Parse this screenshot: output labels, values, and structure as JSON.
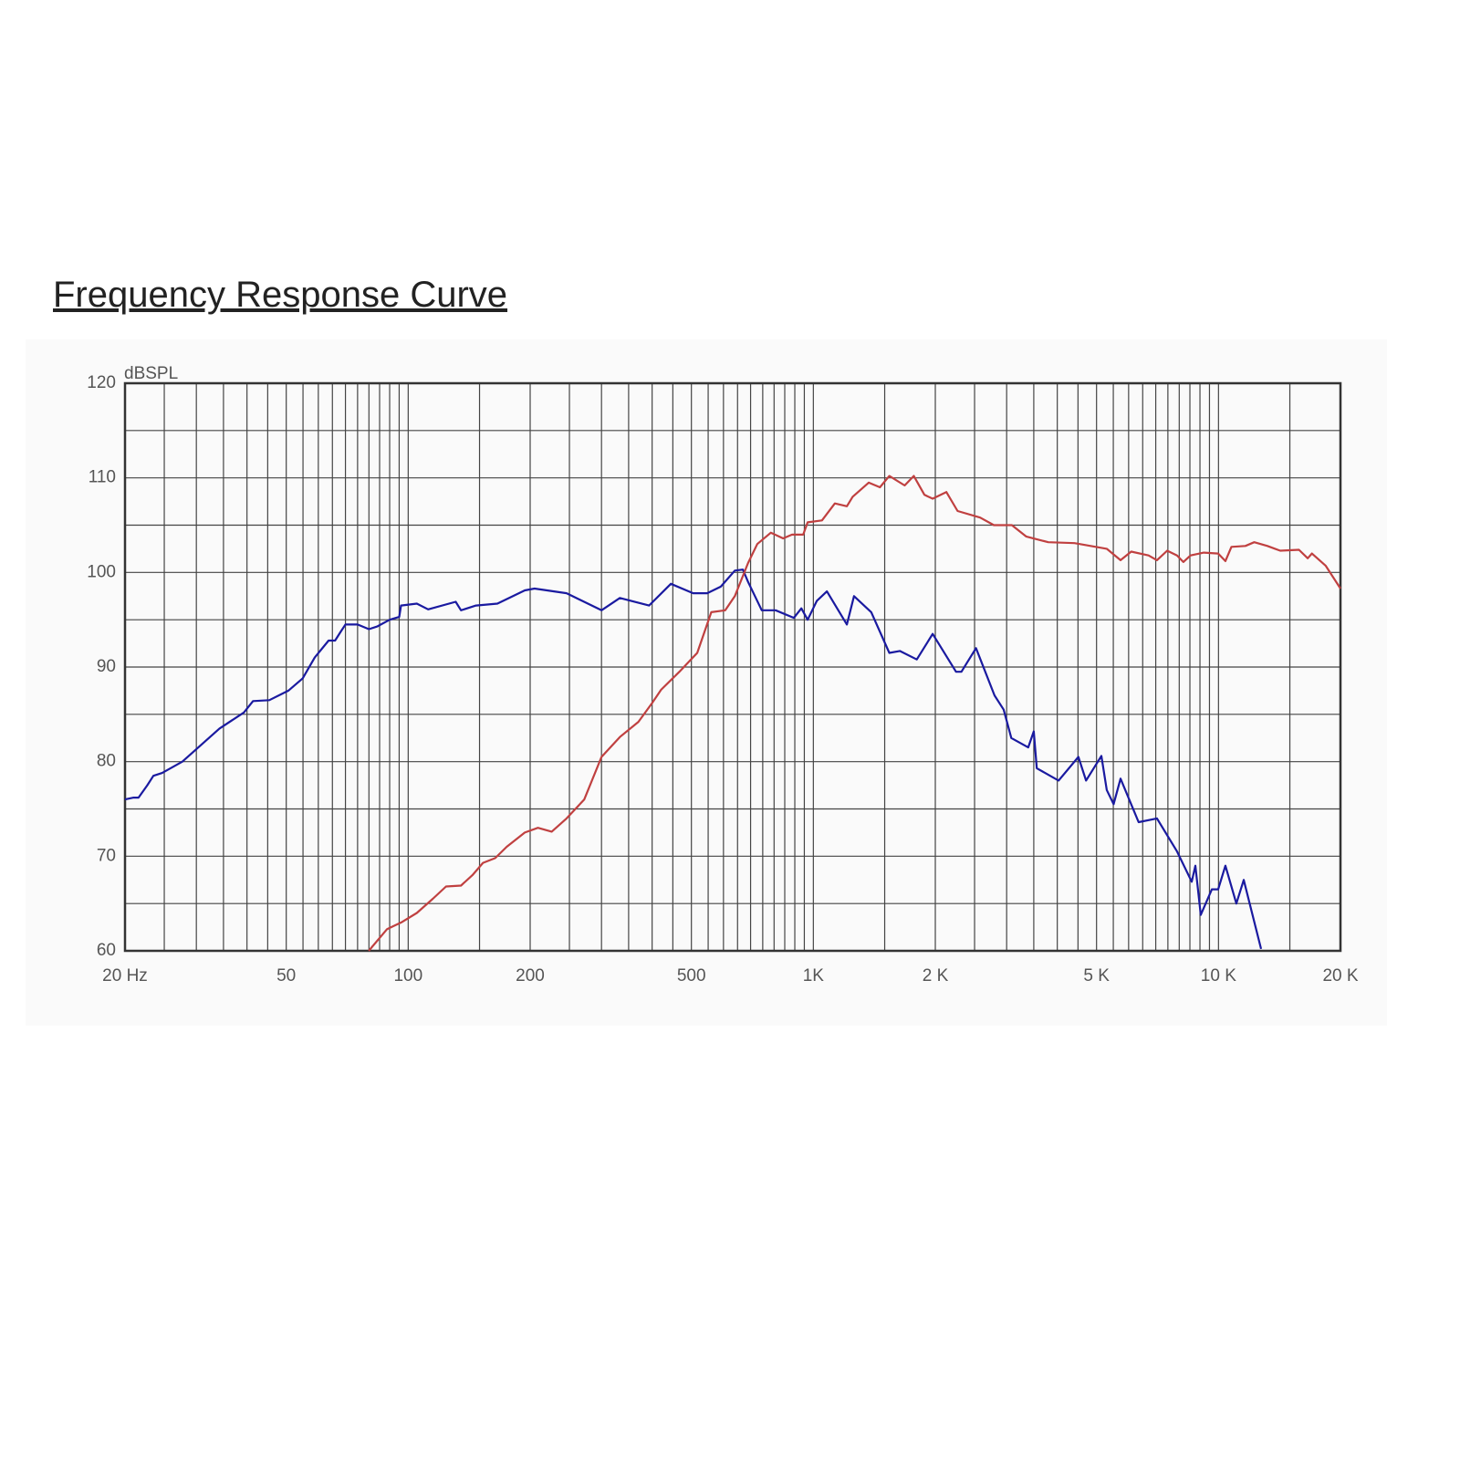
{
  "chart_data": {
    "type": "line",
    "title": "Frequency Response Curve",
    "y_label": "dBSPL",
    "x_scale": "log",
    "xlim": [
      20,
      20000
    ],
    "ylim": [
      60,
      120
    ],
    "xticks": [
      {
        "value": 20,
        "label": "20 Hz"
      },
      50,
      100,
      200,
      500,
      {
        "value": 1000,
        "label": "1K"
      },
      {
        "value": 2000,
        "label": "2 K"
      },
      {
        "value": 5000,
        "label": "5 K"
      },
      {
        "value": 10000,
        "label": "10 K"
      },
      {
        "value": 20000,
        "label": "20 K"
      }
    ],
    "yticks": [
      60,
      70,
      80,
      90,
      100,
      110,
      120
    ],
    "grid": true,
    "xgrid": [
      25,
      30,
      35,
      40,
      45,
      50,
      55,
      60,
      65,
      70,
      75,
      80,
      85,
      90,
      95,
      100,
      150,
      200,
      250,
      300,
      350,
      400,
      450,
      500,
      550,
      600,
      650,
      700,
      750,
      800,
      850,
      900,
      950,
      1000,
      1500,
      2000,
      2500,
      3000,
      3500,
      4000,
      4500,
      5000,
      5500,
      6000,
      6500,
      7000,
      7500,
      8000,
      8500,
      9000,
      9500,
      10000,
      15000
    ],
    "ygrid": [
      65,
      70,
      75,
      80,
      85,
      90,
      95,
      100,
      105,
      110,
      115
    ],
    "series": [
      {
        "color": "#1a1aa0",
        "x": [
          20,
          21,
          21.6,
          22.7,
          23.5,
          24.7,
          27.7,
          34.2,
          39.3,
          41.4,
          45.4,
          50.6,
          54.9,
          58.8,
          63.6,
          66,
          68.3,
          70,
          75,
          80,
          84,
          90,
          95,
          96,
          105,
          112,
          131,
          135,
          147,
          166,
          194,
          205,
          246,
          300,
          333,
          393,
          445,
          505,
          547,
          591,
          640,
          670,
          690,
          746,
          807,
          895,
          934,
          968,
          1020,
          1080,
          1210,
          1260,
          1390,
          1540,
          1635,
          1800,
          1970,
          2250,
          2320,
          2520,
          2800,
          2950,
          3080,
          3390,
          3500,
          3560,
          4030,
          4510,
          4710,
          5140,
          5300,
          5510,
          5730,
          6350,
          7050,
          7900,
          8590,
          8770,
          9040,
          9630,
          9980,
          10400,
          11070,
          11540,
          12740
        ],
        "values": [
          76,
          76.2,
          76.2,
          77.5,
          78.5,
          78.8,
          80,
          83.5,
          85.2,
          86.4,
          86.5,
          87.5,
          88.8,
          91,
          92.8,
          92.8,
          93.8,
          94.5,
          94.5,
          94,
          94.3,
          95,
          95.3,
          96.5,
          96.7,
          96.1,
          96.9,
          96,
          96.5,
          96.7,
          98.1,
          98.3,
          97.8,
          96,
          97.3,
          96.5,
          98.8,
          97.8,
          97.8,
          98.5,
          100.2,
          100.3,
          99,
          96,
          96,
          95.2,
          96.2,
          95,
          97,
          98,
          94.5,
          97.5,
          95.8,
          91.5,
          91.7,
          90.8,
          93.5,
          89.5,
          89.5,
          92,
          87,
          85.5,
          82.5,
          81.5,
          83.2,
          79.3,
          78,
          80.5,
          78,
          80.6,
          77,
          75.5,
          78.2,
          73.6,
          74,
          70.5,
          67.3,
          69,
          63.8,
          66.5,
          66.5,
          69,
          65,
          67.5,
          60.2
        ]
      },
      {
        "color": "#c04040",
        "x": [
          79.9,
          88.7,
          96.1,
          105,
          115,
          124,
          135,
          144,
          153,
          164,
          175,
          194,
          209,
          226,
          246,
          272,
          300,
          333,
          370,
          400,
          421,
          467,
          517,
          560,
          606,
          640,
          690,
          727,
          785,
          842,
          886,
          944,
          968,
          1050,
          1130,
          1210,
          1250,
          1370,
          1460,
          1540,
          1680,
          1770,
          1880,
          1970,
          2130,
          2270,
          2580,
          2790,
          3090,
          3350,
          3800,
          4410,
          5300,
          5730,
          6090,
          6720,
          7050,
          7470,
          7900,
          8190,
          8530,
          9200,
          9980,
          10400,
          10760,
          11650,
          12250,
          13200,
          14200,
          15800,
          16600,
          17000,
          18400,
          20000
        ],
        "values": [
          60,
          62.3,
          63,
          64,
          65.5,
          66.8,
          66.9,
          68,
          69.3,
          69.8,
          71,
          72.5,
          73,
          72.6,
          74,
          76,
          80.5,
          82.6,
          84.2,
          86.2,
          87.6,
          89.5,
          91.5,
          95.8,
          96,
          97.5,
          101,
          103,
          104.2,
          103.6,
          104,
          104,
          105.3,
          105.5,
          107.3,
          107,
          108,
          109.5,
          109,
          110.2,
          109.2,
          110.2,
          108.2,
          107.8,
          108.5,
          106.5,
          105.8,
          105,
          105,
          103.8,
          103.2,
          103.1,
          102.5,
          101.3,
          102.2,
          101.8,
          101.3,
          102.3,
          101.8,
          101.1,
          101.8,
          102.1,
          102,
          101.2,
          102.7,
          102.8,
          103.2,
          102.8,
          102.3,
          102.4,
          101.5,
          102,
          100.7,
          98.3
        ]
      }
    ]
  }
}
